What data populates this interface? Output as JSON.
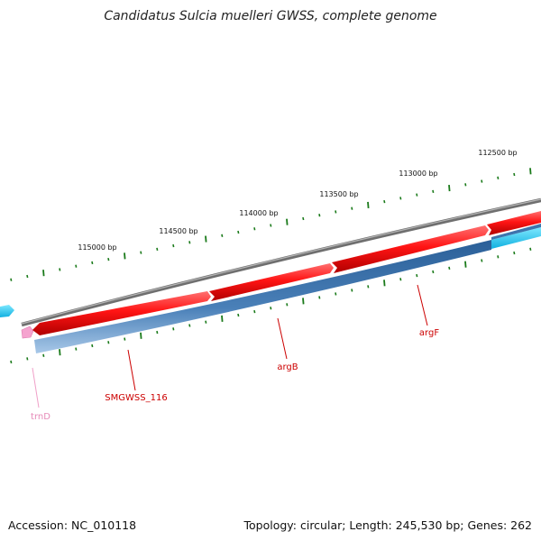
{
  "title": "Candidatus Sulcia muelleri GWSS, complete genome",
  "footer": {
    "accession": "Accession: NC_010118",
    "summary": "Topology: circular; Length: 245,530 bp; Genes: 262"
  },
  "ruler": {
    "labels": [
      "115000 bp",
      "114500 bp",
      "114000 bp",
      "113500 bp",
      "113000 bp",
      "112500 bp"
    ],
    "color": "#1a7a1a"
  },
  "genes": [
    {
      "name": "SMGWSS_116",
      "color": "#cc0000"
    },
    {
      "name": "argB",
      "color": "#cc0000"
    },
    {
      "name": "argF",
      "color": "#cc0000"
    },
    {
      "name": "trnD",
      "color": "#e68ab8"
    }
  ],
  "colors": {
    "backbone": "#7a7a7a",
    "forward_cds": "#ff1a1a",
    "reverse_cds": "#3d74ad",
    "cyan_feature": "#22ccf0",
    "trna": "#f5a3cf"
  }
}
